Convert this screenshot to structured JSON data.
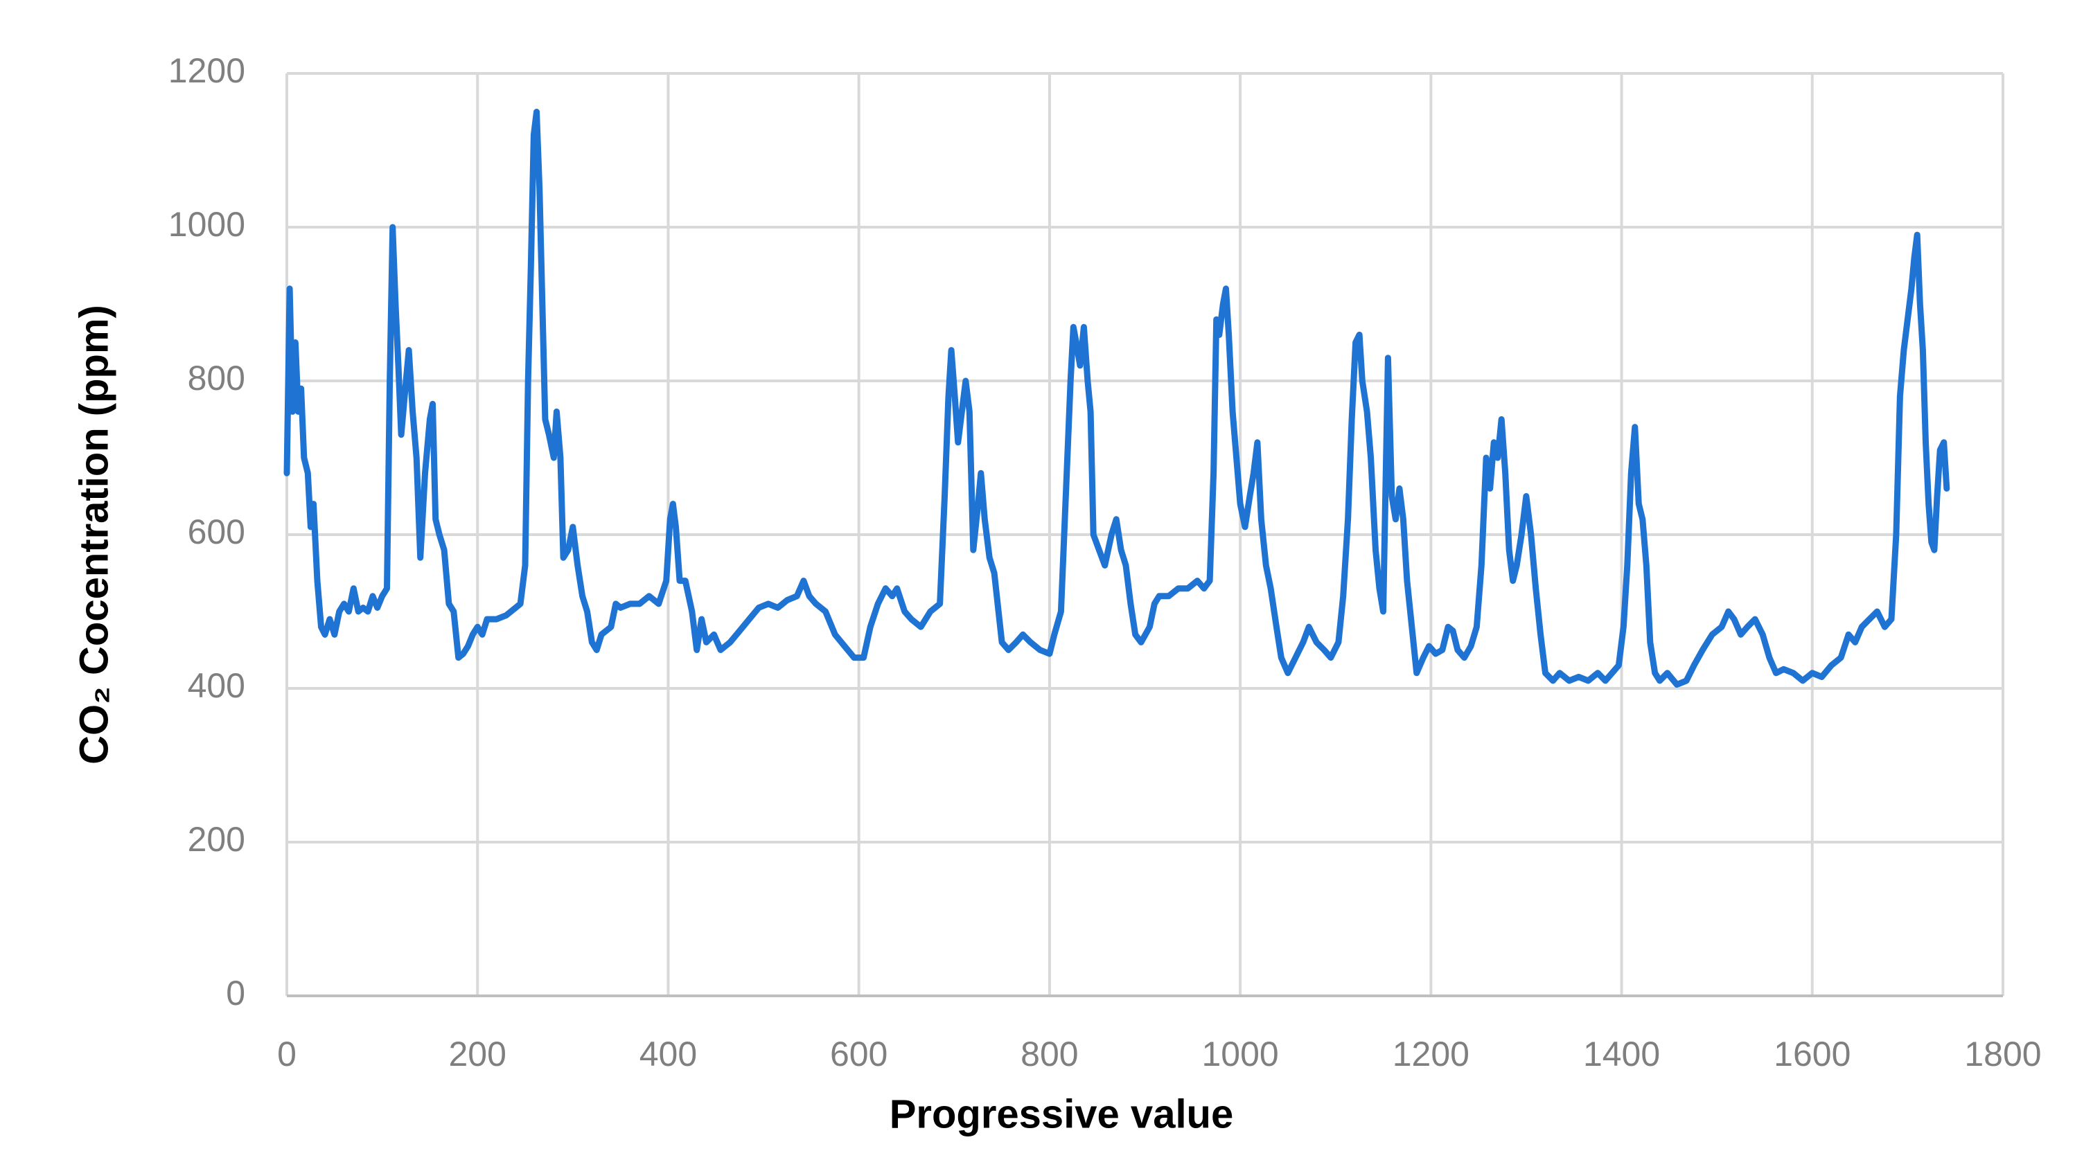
{
  "chart_data": {
    "type": "line",
    "x_label": "Progressive value",
    "y_label": "CO₂ Cocentration (ppm)",
    "xlim": [
      0,
      1800
    ],
    "xticks": [
      0,
      200,
      400,
      600,
      800,
      1000,
      1200,
      1400,
      1600,
      1800
    ],
    "ylim": [
      0,
      1200
    ],
    "yticks": [
      0,
      200,
      400,
      600,
      800,
      1000,
      1200
    ],
    "grid": true,
    "color": "#1f73d2",
    "x": [
      0,
      3,
      6,
      9,
      12,
      15,
      18,
      22,
      25,
      28,
      32,
      36,
      40,
      45,
      50,
      55,
      60,
      65,
      70,
      75,
      80,
      85,
      90,
      95,
      100,
      105,
      108,
      111,
      114,
      117,
      120,
      125,
      128,
      132,
      136,
      140,
      145,
      150,
      153,
      156,
      160,
      165,
      170,
      175,
      180,
      185,
      190,
      195,
      200,
      205,
      210,
      220,
      230,
      240,
      245,
      250,
      253,
      256,
      259,
      262,
      265,
      268,
      271,
      275,
      280,
      283,
      287,
      290,
      295,
      300,
      305,
      310,
      315,
      320,
      325,
      330,
      340,
      345,
      350,
      360,
      370,
      380,
      390,
      398,
      402,
      405,
      408,
      412,
      418,
      425,
      430,
      435,
      440,
      448,
      455,
      465,
      475,
      485,
      495,
      505,
      515,
      525,
      535,
      542,
      548,
      555,
      565,
      575,
      585,
      595,
      605,
      612,
      620,
      628,
      635,
      640,
      648,
      655,
      665,
      675,
      685,
      690,
      694,
      697,
      700,
      704,
      708,
      712,
      716,
      720,
      725,
      728,
      732,
      737,
      742,
      750,
      757,
      765,
      772,
      780,
      790,
      800,
      805,
      812,
      818,
      822,
      825,
      828,
      832,
      836,
      840,
      843,
      846,
      852,
      858,
      865,
      870,
      875,
      880,
      885,
      890,
      896,
      905,
      910,
      915,
      925,
      935,
      945,
      955,
      962,
      968,
      972,
      975,
      978,
      982,
      985,
      988,
      992,
      996,
      1000,
      1005,
      1010,
      1014,
      1018,
      1022,
      1027,
      1032,
      1038,
      1043,
      1050,
      1058,
      1066,
      1072,
      1080,
      1088,
      1095,
      1103,
      1108,
      1113,
      1117,
      1121,
      1125,
      1128,
      1133,
      1137,
      1142,
      1146,
      1150,
      1155,
      1159,
      1163,
      1167,
      1171,
      1175,
      1180,
      1185,
      1192,
      1198,
      1205,
      1212,
      1218,
      1223,
      1228,
      1235,
      1242,
      1248,
      1253,
      1258,
      1262,
      1266,
      1270,
      1274,
      1278,
      1282,
      1286,
      1290,
      1295,
      1300,
      1305,
      1310,
      1315,
      1320,
      1328,
      1335,
      1345,
      1355,
      1365,
      1375,
      1383,
      1390,
      1397,
      1402,
      1406,
      1410,
      1414,
      1418,
      1422,
      1426,
      1430,
      1435,
      1440,
      1448,
      1458,
      1468,
      1476,
      1485,
      1495,
      1505,
      1512,
      1518,
      1525,
      1532,
      1540,
      1548,
      1555,
      1562,
      1570,
      1580,
      1590,
      1600,
      1610,
      1620,
      1630,
      1638,
      1645,
      1652,
      1660,
      1668,
      1676,
      1683,
      1688,
      1692,
      1696,
      1700,
      1704,
      1707,
      1710,
      1713,
      1716,
      1719,
      1722,
      1725,
      1728,
      1731,
      1734,
      1738,
      1741
    ],
    "values": [
      680,
      920,
      760,
      850,
      760,
      790,
      700,
      680,
      610,
      640,
      540,
      480,
      470,
      490,
      470,
      500,
      510,
      500,
      530,
      500,
      505,
      500,
      520,
      505,
      520,
      530,
      800,
      1000,
      900,
      820,
      730,
      800,
      840,
      760,
      700,
      570,
      680,
      750,
      770,
      620,
      600,
      580,
      510,
      500,
      440,
      445,
      455,
      470,
      480,
      470,
      490,
      490,
      495,
      505,
      510,
      560,
      800,
      950,
      1120,
      1150,
      1050,
      900,
      750,
      730,
      700,
      760,
      700,
      570,
      580,
      610,
      560,
      520,
      500,
      460,
      450,
      470,
      480,
      510,
      505,
      510,
      510,
      520,
      510,
      540,
      620,
      640,
      610,
      540,
      540,
      500,
      450,
      490,
      460,
      470,
      450,
      460,
      475,
      490,
      505,
      510,
      505,
      515,
      520,
      540,
      520,
      510,
      500,
      470,
      455,
      440,
      440,
      480,
      510,
      530,
      520,
      530,
      500,
      490,
      480,
      500,
      510,
      650,
      780,
      840,
      790,
      720,
      760,
      800,
      760,
      580,
      640,
      680,
      620,
      570,
      550,
      460,
      450,
      460,
      470,
      460,
      450,
      445,
      470,
      500,
      680,
      800,
      870,
      850,
      820,
      870,
      800,
      760,
      600,
      580,
      560,
      600,
      620,
      580,
      560,
      510,
      470,
      460,
      480,
      510,
      520,
      520,
      530,
      530,
      540,
      530,
      540,
      680,
      880,
      860,
      900,
      920,
      860,
      760,
      700,
      640,
      610,
      650,
      680,
      720,
      620,
      560,
      530,
      480,
      440,
      420,
      440,
      460,
      480,
      460,
      450,
      440,
      460,
      520,
      620,
      750,
      850,
      860,
      800,
      760,
      700,
      580,
      530,
      500,
      830,
      650,
      620,
      660,
      620,
      540,
      480,
      420,
      440,
      455,
      445,
      450,
      480,
      475,
      450,
      440,
      455,
      480,
      560,
      700,
      660,
      720,
      700,
      750,
      680,
      580,
      540,
      560,
      600,
      650,
      600,
      530,
      470,
      420,
      410,
      420,
      410,
      415,
      410,
      420,
      410,
      420,
      430,
      480,
      560,
      680,
      740,
      640,
      620,
      560,
      460,
      420,
      410,
      420,
      405,
      410,
      430,
      450,
      470,
      480,
      500,
      490,
      470,
      480,
      490,
      470,
      440,
      420,
      425,
      420,
      410,
      420,
      415,
      430,
      440,
      470,
      460,
      480,
      490,
      500,
      480,
      490,
      600,
      780,
      840,
      880,
      920,
      960,
      990,
      900,
      840,
      720,
      640,
      590,
      580,
      650,
      710,
      720,
      660
    ]
  }
}
